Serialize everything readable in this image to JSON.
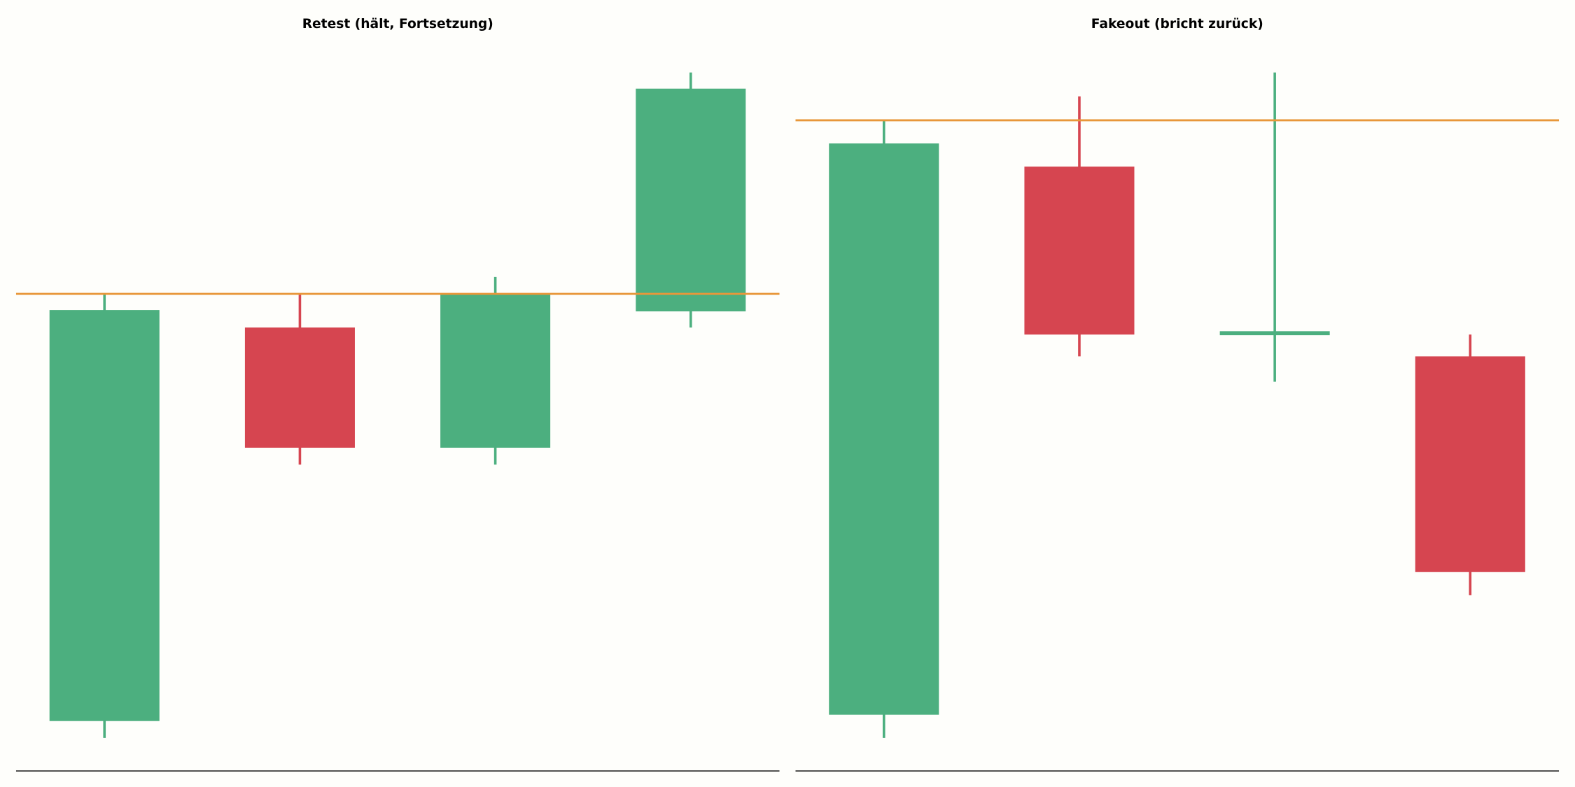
{
  "chart_data": [
    {
      "type": "candlestick",
      "title": "Retest (hält, Fortsetzung)",
      "categories": [
        null,
        null,
        null,
        null
      ],
      "open": [
        7.1,
        63.1,
        46.0,
        65.4
      ],
      "high": [
        67.9,
        67.9,
        70.3,
        99.4
      ],
      "low": [
        4.7,
        43.6,
        43.6,
        63.1
      ],
      "close": [
        65.6,
        46.0,
        67.9,
        97.1
      ],
      "up_color": "#4caf7f",
      "down_color": "#d64550",
      "level": 67.9,
      "level_color": "#e8973a",
      "ylim": [
        0,
        100
      ]
    },
    {
      "type": "candlestick",
      "title": "Fakeout (bricht zurück)",
      "categories": [
        null,
        null,
        null,
        null
      ],
      "open": [
        8.0,
        86.0,
        62.3,
        59.0
      ],
      "high": [
        92.6,
        96.0,
        99.4,
        62.1
      ],
      "low": [
        4.7,
        59.0,
        55.4,
        25.0
      ],
      "close": [
        89.3,
        62.1,
        62.3,
        28.3
      ],
      "up_color": "#4caf7f",
      "down_color": "#d64550",
      "level": 92.6,
      "level_color": "#e8973a",
      "ylim": [
        0,
        100
      ]
    }
  ]
}
